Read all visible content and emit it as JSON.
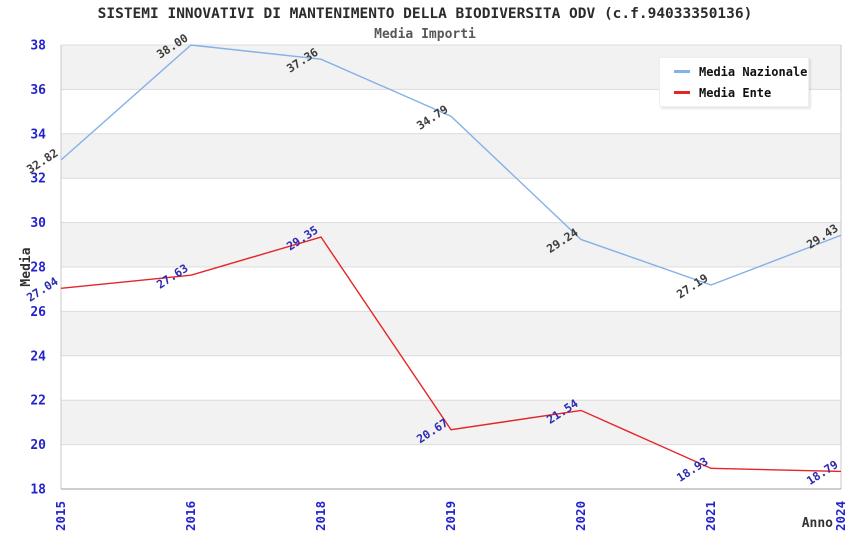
{
  "title": "SISTEMI INNOVATIVI DI MANTENIMENTO DELLA BIODIVERSITA ODV (c.f.94033350136)",
  "subtitle": "Media Importi",
  "legend": {
    "position": "top-right",
    "items": [
      {
        "label": "Media Nazionale",
        "color": "#84b1e7"
      },
      {
        "label": "Media Ente",
        "color": "#e52528"
      }
    ]
  },
  "axes": {
    "x_title": "Anno",
    "y_title": "Media",
    "tick_color": "#2323cb",
    "axis_title_color": "#333333"
  },
  "chart_data": {
    "type": "line",
    "title": "SISTEMI INNOVATIVI DI MANTENIMENTO DELLA BIODIVERSITA ODV (c.f.94033350136)",
    "subtitle": "Media Importi",
    "xlabel": "Anno",
    "ylabel": "Media",
    "categories": [
      "2015",
      "2016",
      "2018",
      "2019",
      "2020",
      "2021",
      "2024"
    ],
    "series": [
      {
        "name": "Media Nazionale",
        "color": "#84b1e7",
        "label_color": "#3c3c3c",
        "values": [
          32.82,
          38.0,
          37.36,
          34.79,
          29.24,
          27.19,
          29.43
        ]
      },
      {
        "name": "Media Ente",
        "color": "#e52528",
        "label_color": "#2c2cb2",
        "values": [
          27.04,
          27.63,
          29.35,
          20.67,
          21.54,
          18.93,
          18.79
        ]
      }
    ],
    "ylim": [
      18,
      38
    ],
    "ytick_step": 2,
    "yticks": [
      18,
      20,
      22,
      24,
      26,
      28,
      30,
      32,
      34,
      36,
      38
    ],
    "value_label_decimals": 2,
    "grid": "horizontal-bands",
    "band_fill": "#f2f2f2",
    "gridline_color": "#dcdcdc",
    "frame_color": "#c8c8c8",
    "baseline_color": "#9e9e9e",
    "legend_position": "top-right"
  }
}
